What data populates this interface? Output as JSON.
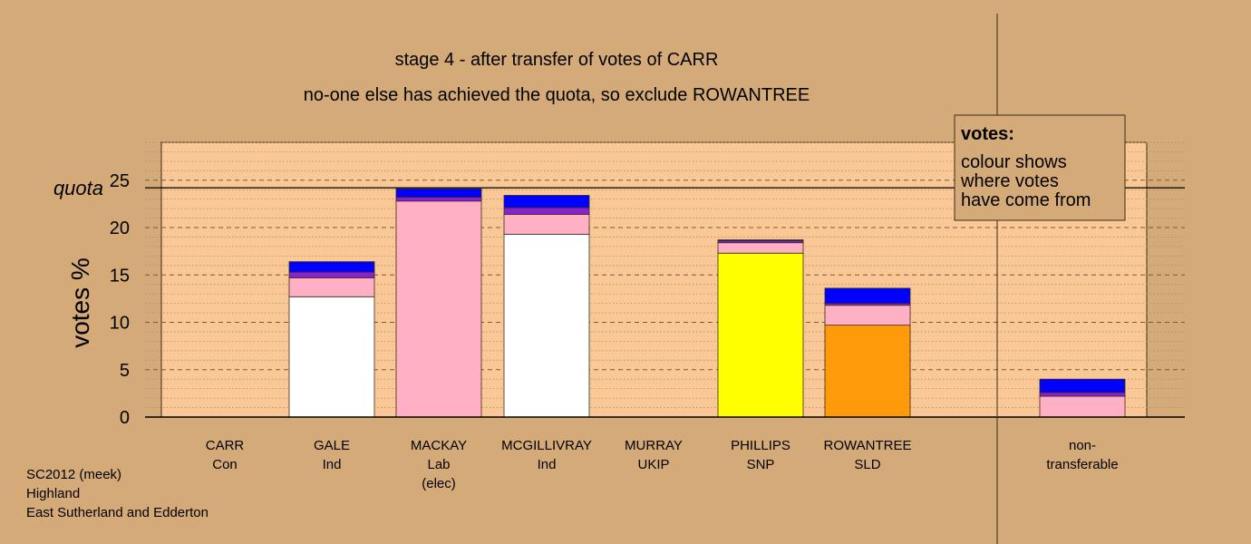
{
  "chart_data": {
    "type": "bar",
    "title": "stage 4 - after transfer of votes of CARR",
    "subtitle": "no-one else has achieved the quota, so exclude ROWANTREE",
    "ylabel": "votes %",
    "ylim": [
      0,
      29
    ],
    "yticks": [
      0,
      5,
      10,
      15,
      20,
      25
    ],
    "quota": 24.2,
    "quota_label": "quota",
    "grid": "dotted horizontal every 1 unit, dashed every 5 units",
    "colors": {
      "Ind": "#FFFFFF",
      "Lab": "#FFB0C4",
      "UKIP": "#8822CC",
      "Con": "#0000FF",
      "SNP": "#FFFF00",
      "SLD": "#FF9A0A",
      "background": "#D4AA78",
      "plot_area": "#F9C896"
    },
    "categories": [
      {
        "name": "CARR",
        "party": "Con",
        "note": ""
      },
      {
        "name": "GALE",
        "party": "Ind",
        "note": ""
      },
      {
        "name": "MACKAY",
        "party": "Lab",
        "note": "(elec)"
      },
      {
        "name": "MCGILLIVRAY",
        "party": "Ind",
        "note": ""
      },
      {
        "name": "MURRAY",
        "party": "UKIP",
        "note": ""
      },
      {
        "name": "PHILLIPS",
        "party": "SNP",
        "note": ""
      },
      {
        "name": "ROWANTREE",
        "party": "SLD",
        "note": ""
      },
      {
        "name": "non-",
        "party": "transferable",
        "note": ""
      }
    ],
    "bars": [
      {
        "candidate": "CARR",
        "segments": []
      },
      {
        "candidate": "GALE",
        "segments": [
          {
            "from": "Ind",
            "value": 12.7
          },
          {
            "from": "Lab",
            "value": 2.0
          },
          {
            "from": "UKIP",
            "value": 0.6
          },
          {
            "from": "Con",
            "value": 1.1
          }
        ]
      },
      {
        "candidate": "MACKAY",
        "segments": [
          {
            "from": "Lab",
            "value": 22.8
          },
          {
            "from": "UKIP",
            "value": 0.4
          },
          {
            "from": "Con",
            "value": 0.9
          }
        ]
      },
      {
        "candidate": "MCGILLIVRAY",
        "segments": [
          {
            "from": "Ind",
            "value": 19.3
          },
          {
            "from": "Lab",
            "value": 2.1
          },
          {
            "from": "UKIP",
            "value": 0.7
          },
          {
            "from": "Con",
            "value": 1.3
          }
        ]
      },
      {
        "candidate": "MURRAY",
        "segments": []
      },
      {
        "candidate": "PHILLIPS",
        "segments": [
          {
            "from": "SNP",
            "value": 17.3
          },
          {
            "from": "Lab",
            "value": 1.1
          },
          {
            "from": "UKIP",
            "value": 0.2
          },
          {
            "from": "Con",
            "value": 0.1
          }
        ]
      },
      {
        "candidate": "ROWANTREE",
        "segments": [
          {
            "from": "SLD",
            "value": 9.7
          },
          {
            "from": "Lab",
            "value": 2.1
          },
          {
            "from": "UKIP",
            "value": 0.2
          },
          {
            "from": "Con",
            "value": 1.6
          }
        ]
      },
      {
        "candidate": "non-transferable",
        "segments": [
          {
            "from": "Lab",
            "value": 2.2
          },
          {
            "from": "UKIP",
            "value": 0.4
          },
          {
            "from": "Con",
            "value": 1.4
          }
        ]
      }
    ],
    "legend": {
      "title": "votes:",
      "lines": [
        "colour shows",
        "where votes",
        "have come from"
      ],
      "placement": "top-right"
    }
  },
  "footer": {
    "lines": [
      "SC2012 (meek)",
      "Highland",
      "East Sutherland and Edderton"
    ]
  }
}
